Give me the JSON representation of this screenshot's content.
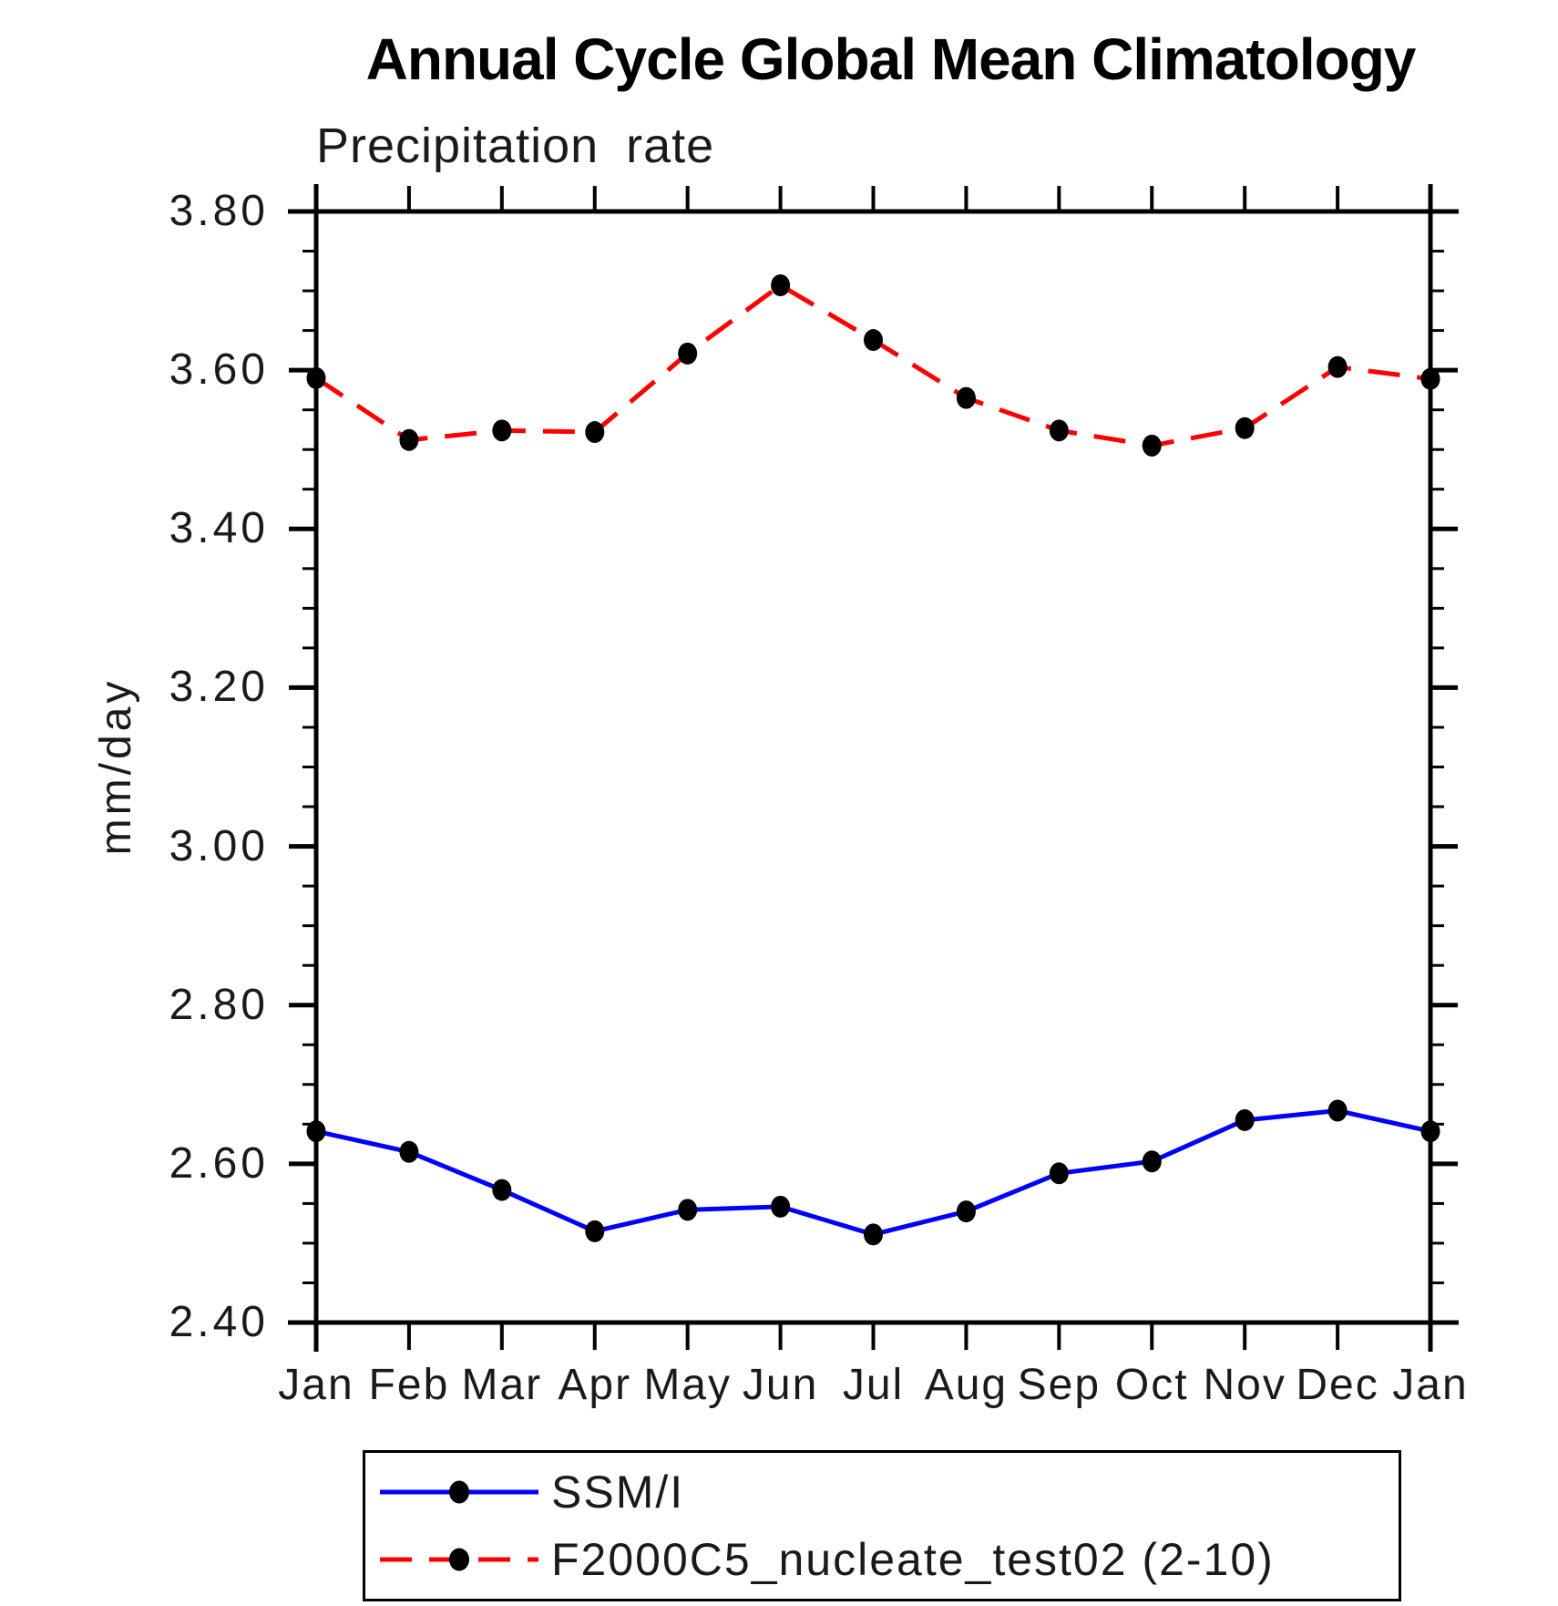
{
  "chart_data": {
    "type": "line",
    "title": "Annual Cycle Global Mean Climatology",
    "subtitle": "Precipitation rate",
    "ylabel": "mm/day",
    "categories": [
      "Jan",
      "Feb",
      "Mar",
      "Apr",
      "May",
      "Jun",
      "Jul",
      "Aug",
      "Sep",
      "Oct",
      "Nov",
      "Dec",
      "Jan"
    ],
    "ylim": [
      2.4,
      3.8
    ],
    "ytick_step": 0.2,
    "yminor_step": 0.05,
    "ytick_labels": [
      "3.80",
      "3.60",
      "3.40",
      "3.20",
      "3.00",
      "2.80",
      "2.60",
      "2.40"
    ],
    "grid": false,
    "legend_position": "bottom",
    "series": [
      {
        "name": "SSM/I",
        "color": "#0000ff",
        "line_style": "solid",
        "marker": "filled-circle",
        "marker_color": "#000000",
        "values": [
          2.641,
          2.615,
          2.567,
          2.515,
          2.542,
          2.546,
          2.511,
          2.54,
          2.588,
          2.603,
          2.655,
          2.667,
          2.641
        ]
      },
      {
        "name": "F2000C5_nucleate_test02 (2-10)",
        "color": "#ff0000",
        "line_style": "dashed",
        "marker": "filled-circle",
        "marker_color": "#000000",
        "values": [
          3.59,
          3.512,
          3.524,
          3.522,
          3.621,
          3.707,
          3.638,
          3.565,
          3.524,
          3.505,
          3.527,
          3.604,
          3.589
        ]
      }
    ]
  },
  "colors": {
    "axis": "#000000",
    "text": "#1a1a1a"
  }
}
